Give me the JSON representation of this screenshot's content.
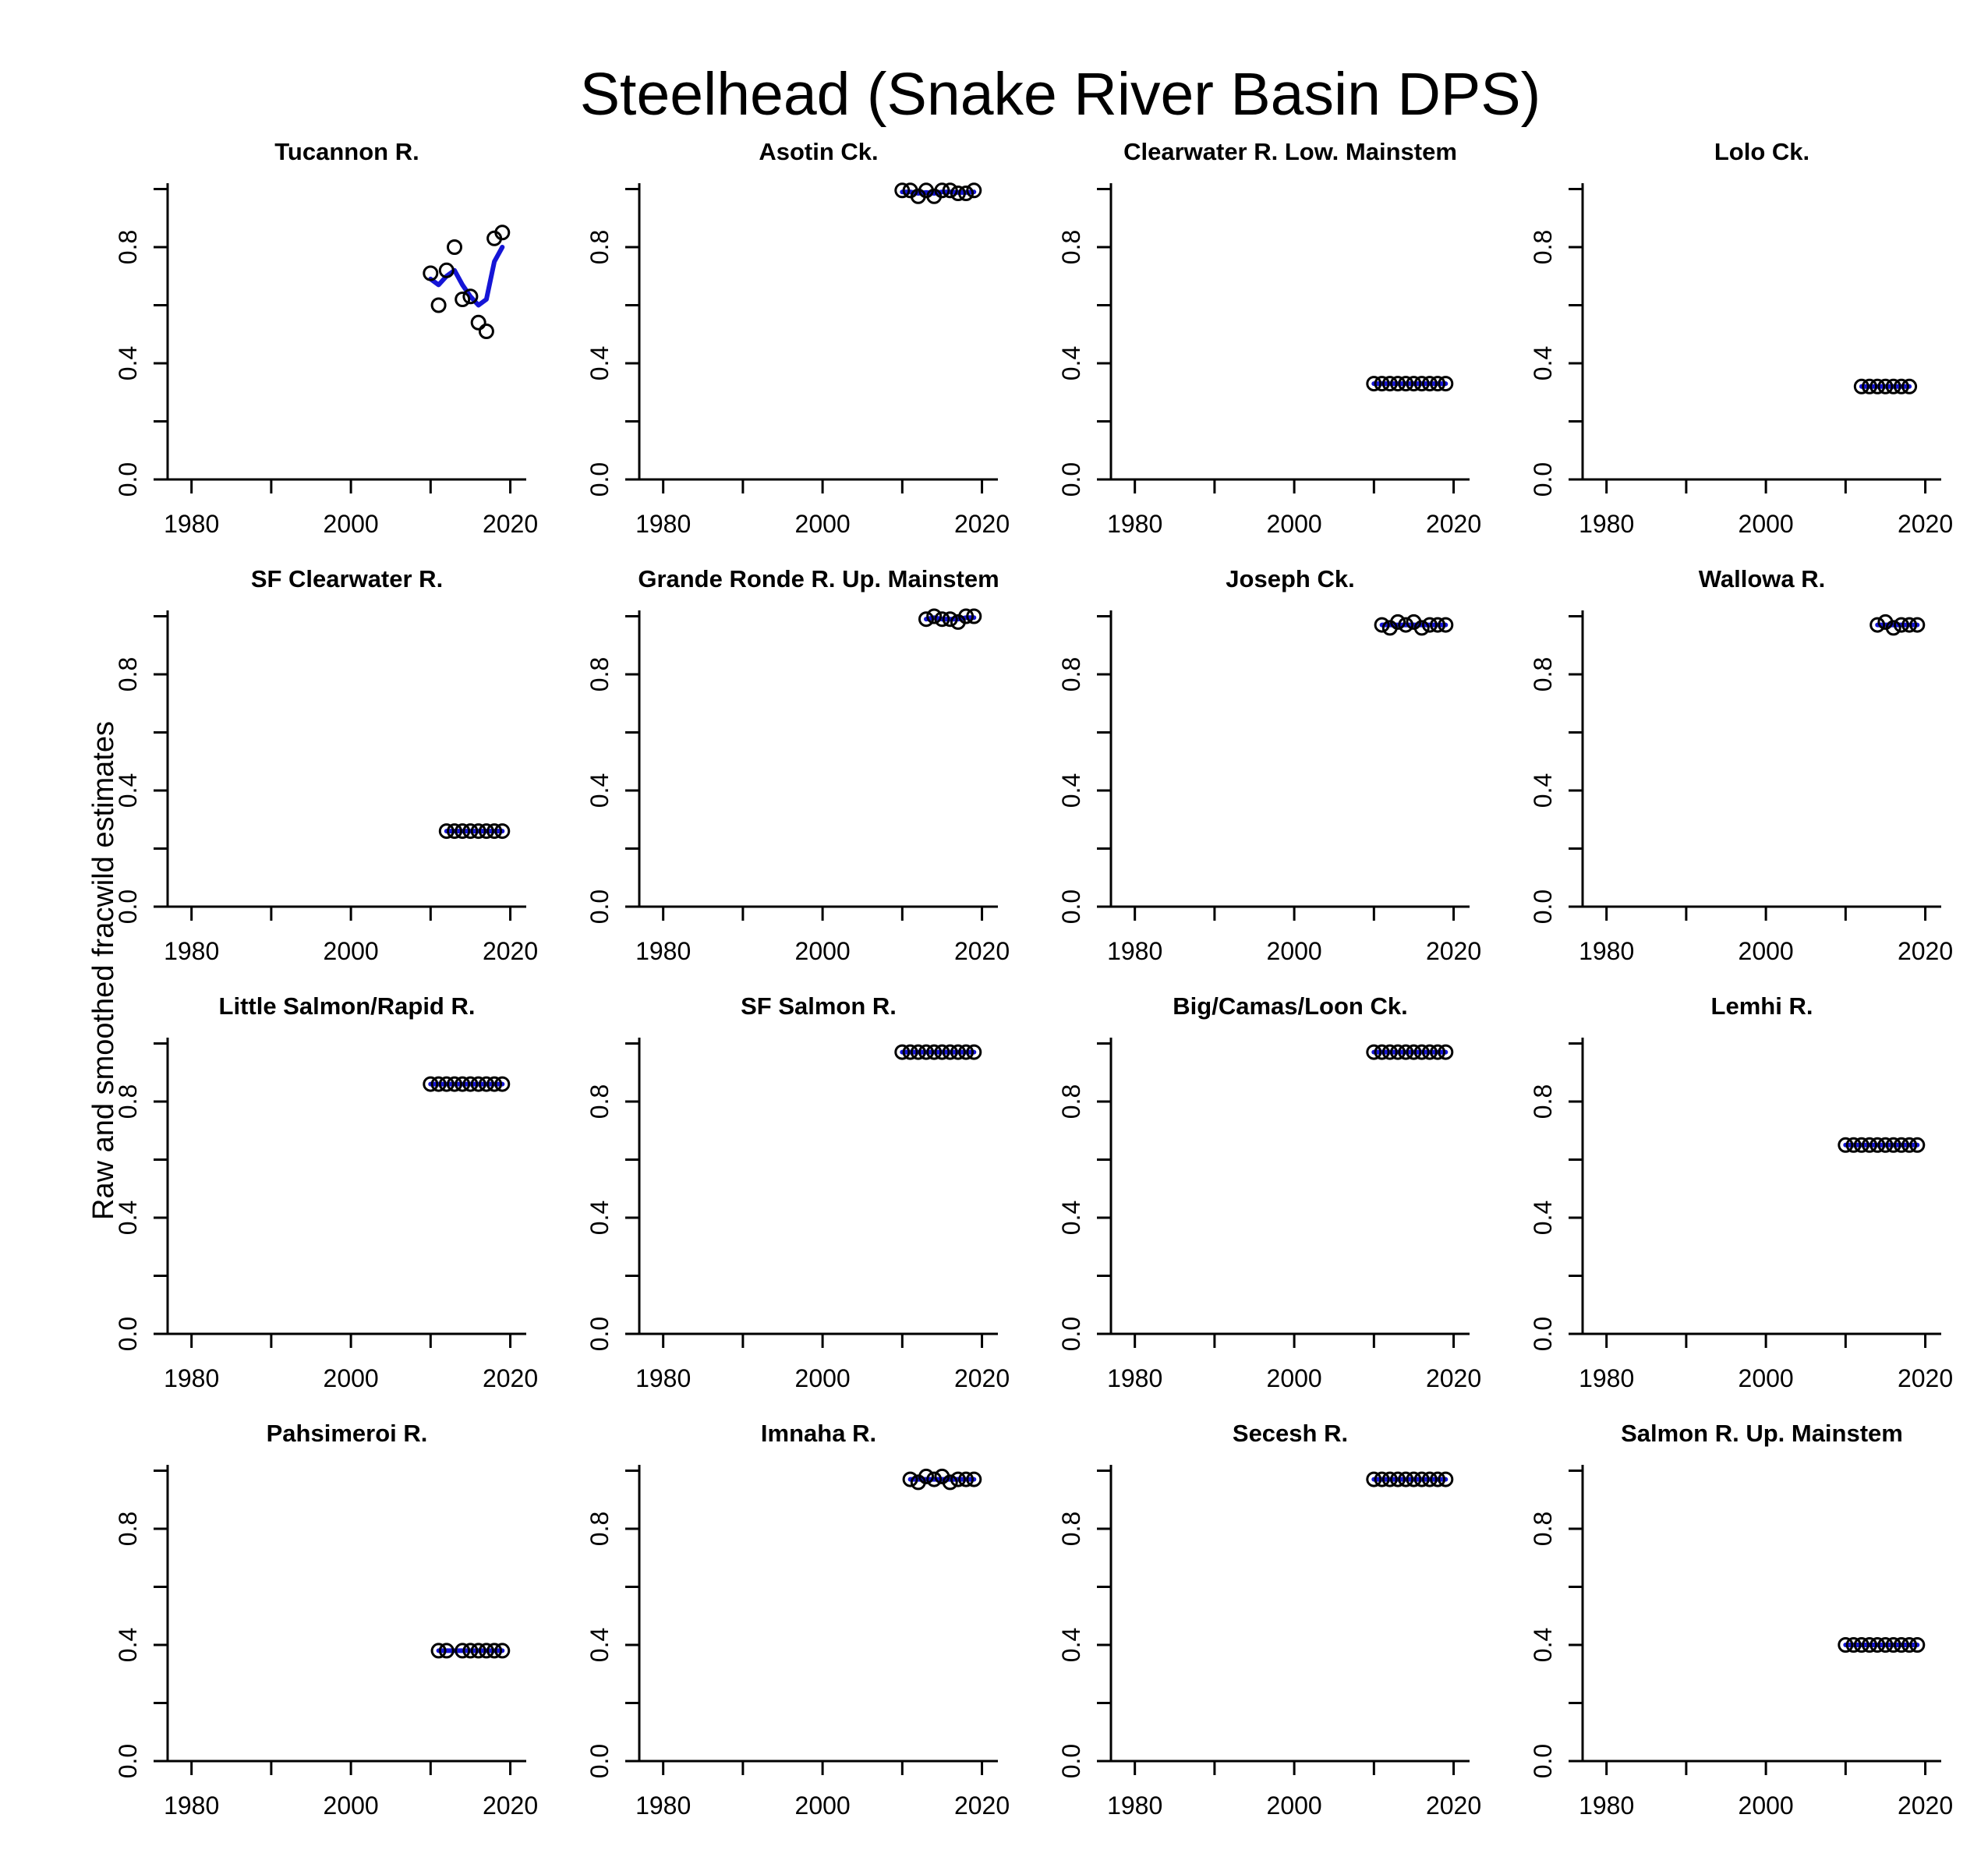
{
  "title": "Steelhead (Snake River Basin DPS)",
  "ylabel": "Raw and smoothed fracwild estimates",
  "chart_data": {
    "type": "scatter",
    "layout": "4x4 small multiples",
    "xlim": [
      1977,
      2022
    ],
    "ylim": [
      0,
      1.02
    ],
    "xticks": [
      1980,
      1990,
      2000,
      2010,
      2020
    ],
    "xtick_labels": [
      "1980",
      "",
      "2000",
      "",
      "2020"
    ],
    "yticks": [
      0.0,
      0.2,
      0.4,
      0.6,
      0.8,
      1.0
    ],
    "ytick_labels": [
      "0.0",
      "",
      "0.4",
      "",
      "0.8",
      ""
    ],
    "colors": {
      "raw": "#000000",
      "smoothed": "#1515d6"
    },
    "panels": [
      {
        "name": "Tucannon R.",
        "x": [
          2010,
          2011,
          2012,
          2013,
          2014,
          2015,
          2016,
          2017,
          2018,
          2019
        ],
        "raw": [
          0.71,
          0.6,
          0.72,
          0.8,
          0.62,
          0.63,
          0.54,
          0.51,
          0.83,
          0.85
        ],
        "smoothed": [
          0.69,
          0.67,
          0.7,
          0.72,
          0.67,
          0.63,
          0.6,
          0.62,
          0.75,
          0.8
        ]
      },
      {
        "name": "Asotin Ck.",
        "x": [
          2010,
          2011,
          2012,
          2013,
          2014,
          2015,
          2016,
          2017,
          2018,
          2019
        ],
        "raw": [
          0.995,
          0.995,
          0.975,
          0.995,
          0.975,
          0.995,
          0.995,
          0.985,
          0.985,
          0.995
        ],
        "smoothed": [
          0.99,
          0.99,
          0.985,
          0.988,
          0.985,
          0.99,
          0.99,
          0.988,
          0.988,
          0.99
        ]
      },
      {
        "name": "Clearwater R. Low. Mainstem",
        "x": [
          2010,
          2011,
          2012,
          2013,
          2014,
          2015,
          2016,
          2017,
          2018,
          2019
        ],
        "raw": [
          0.33,
          0.33,
          0.33,
          0.33,
          0.33,
          0.33,
          0.33,
          0.33,
          0.33,
          0.33
        ],
        "smoothed": [
          0.33,
          0.33,
          0.33,
          0.33,
          0.33,
          0.33,
          0.33,
          0.33,
          0.33,
          0.33
        ]
      },
      {
        "name": "Lolo Ck.",
        "x": [
          2012,
          2013,
          2014,
          2015,
          2016,
          2017,
          2018
        ],
        "raw": [
          0.32,
          0.32,
          0.32,
          0.32,
          0.32,
          0.32,
          0.32
        ],
        "smoothed": [
          0.32,
          0.32,
          0.32,
          0.32,
          0.32,
          0.32,
          0.32
        ]
      },
      {
        "name": "SF Clearwater R.",
        "x": [
          2012,
          2013,
          2014,
          2015,
          2016,
          2017,
          2018,
          2019
        ],
        "raw": [
          0.26,
          0.26,
          0.26,
          0.26,
          0.26,
          0.26,
          0.26,
          0.26
        ],
        "smoothed": [
          0.26,
          0.26,
          0.26,
          0.26,
          0.26,
          0.26,
          0.26,
          0.26
        ]
      },
      {
        "name": "Grande Ronde R. Up. Mainstem",
        "x": [
          2013,
          2014,
          2015,
          2016,
          2017,
          2018,
          2019
        ],
        "raw": [
          0.99,
          1.0,
          0.99,
          0.99,
          0.98,
          1.0,
          1.0
        ],
        "smoothed": [
          0.99,
          0.995,
          0.99,
          0.99,
          0.99,
          0.995,
          0.995
        ]
      },
      {
        "name": "Joseph Ck.",
        "x": [
          2011,
          2012,
          2013,
          2014,
          2015,
          2016,
          2017,
          2018,
          2019
        ],
        "raw": [
          0.97,
          0.96,
          0.98,
          0.97,
          0.98,
          0.96,
          0.97,
          0.97,
          0.97
        ],
        "smoothed": [
          0.97,
          0.97,
          0.97,
          0.97,
          0.97,
          0.97,
          0.97,
          0.97,
          0.97
        ]
      },
      {
        "name": "Wallowa R.",
        "x": [
          2014,
          2015,
          2016,
          2017,
          2018,
          2019
        ],
        "raw": [
          0.97,
          0.98,
          0.96,
          0.97,
          0.97,
          0.97
        ],
        "smoothed": [
          0.97,
          0.97,
          0.97,
          0.97,
          0.97,
          0.97
        ]
      },
      {
        "name": "Little Salmon/Rapid R.",
        "x": [
          2010,
          2011,
          2012,
          2013,
          2014,
          2015,
          2016,
          2017,
          2018,
          2019
        ],
        "raw": [
          0.86,
          0.86,
          0.86,
          0.86,
          0.86,
          0.86,
          0.86,
          0.86,
          0.86,
          0.86
        ],
        "smoothed": [
          0.86,
          0.86,
          0.86,
          0.86,
          0.86,
          0.86,
          0.86,
          0.86,
          0.86,
          0.86
        ]
      },
      {
        "name": "SF Salmon R.",
        "x": [
          2010,
          2011,
          2012,
          2013,
          2014,
          2015,
          2016,
          2017,
          2018,
          2019
        ],
        "raw": [
          0.97,
          0.97,
          0.97,
          0.97,
          0.97,
          0.97,
          0.97,
          0.97,
          0.97,
          0.97
        ],
        "smoothed": [
          0.97,
          0.97,
          0.97,
          0.97,
          0.97,
          0.97,
          0.97,
          0.97,
          0.97,
          0.97
        ]
      },
      {
        "name": "Big/Camas/Loon Ck.",
        "x": [
          2010,
          2011,
          2012,
          2013,
          2014,
          2015,
          2016,
          2017,
          2018,
          2019
        ],
        "raw": [
          0.97,
          0.97,
          0.97,
          0.97,
          0.97,
          0.97,
          0.97,
          0.97,
          0.97,
          0.97
        ],
        "smoothed": [
          0.97,
          0.97,
          0.97,
          0.97,
          0.97,
          0.97,
          0.97,
          0.97,
          0.97,
          0.97
        ]
      },
      {
        "name": "Lemhi R.",
        "x": [
          2010,
          2011,
          2012,
          2013,
          2014,
          2015,
          2016,
          2017,
          2018,
          2019
        ],
        "raw": [
          0.65,
          0.65,
          0.65,
          0.65,
          0.65,
          0.65,
          0.65,
          0.65,
          0.65,
          0.65
        ],
        "smoothed": [
          0.65,
          0.65,
          0.65,
          0.65,
          0.65,
          0.65,
          0.65,
          0.65,
          0.65,
          0.65
        ]
      },
      {
        "name": "Pahsimeroi R.",
        "x": [
          2011,
          2012,
          2014,
          2015,
          2016,
          2017,
          2018,
          2019
        ],
        "raw": [
          0.38,
          0.38,
          0.38,
          0.38,
          0.38,
          0.38,
          0.38,
          0.38
        ],
        "smoothed": [
          0.38,
          0.38,
          0.38,
          0.38,
          0.38,
          0.38,
          0.38,
          0.38
        ]
      },
      {
        "name": "Imnaha R.",
        "x": [
          2011,
          2012,
          2013,
          2014,
          2015,
          2016,
          2017,
          2018,
          2019
        ],
        "raw": [
          0.97,
          0.96,
          0.98,
          0.97,
          0.98,
          0.96,
          0.97,
          0.97,
          0.97
        ],
        "smoothed": [
          0.97,
          0.97,
          0.97,
          0.97,
          0.97,
          0.97,
          0.97,
          0.97,
          0.97
        ]
      },
      {
        "name": "Secesh R.",
        "x": [
          2010,
          2011,
          2012,
          2013,
          2014,
          2015,
          2016,
          2017,
          2018,
          2019
        ],
        "raw": [
          0.97,
          0.97,
          0.97,
          0.97,
          0.97,
          0.97,
          0.97,
          0.97,
          0.97,
          0.97
        ],
        "smoothed": [
          0.97,
          0.97,
          0.97,
          0.97,
          0.97,
          0.97,
          0.97,
          0.97,
          0.97,
          0.97
        ]
      },
      {
        "name": "Salmon R. Up. Mainstem",
        "x": [
          2010,
          2011,
          2012,
          2013,
          2014,
          2015,
          2016,
          2017,
          2018,
          2019
        ],
        "raw": [
          0.4,
          0.4,
          0.4,
          0.4,
          0.4,
          0.4,
          0.4,
          0.4,
          0.4,
          0.4
        ],
        "smoothed": [
          0.4,
          0.4,
          0.4,
          0.4,
          0.4,
          0.4,
          0.4,
          0.4,
          0.4,
          0.4
        ]
      }
    ]
  }
}
